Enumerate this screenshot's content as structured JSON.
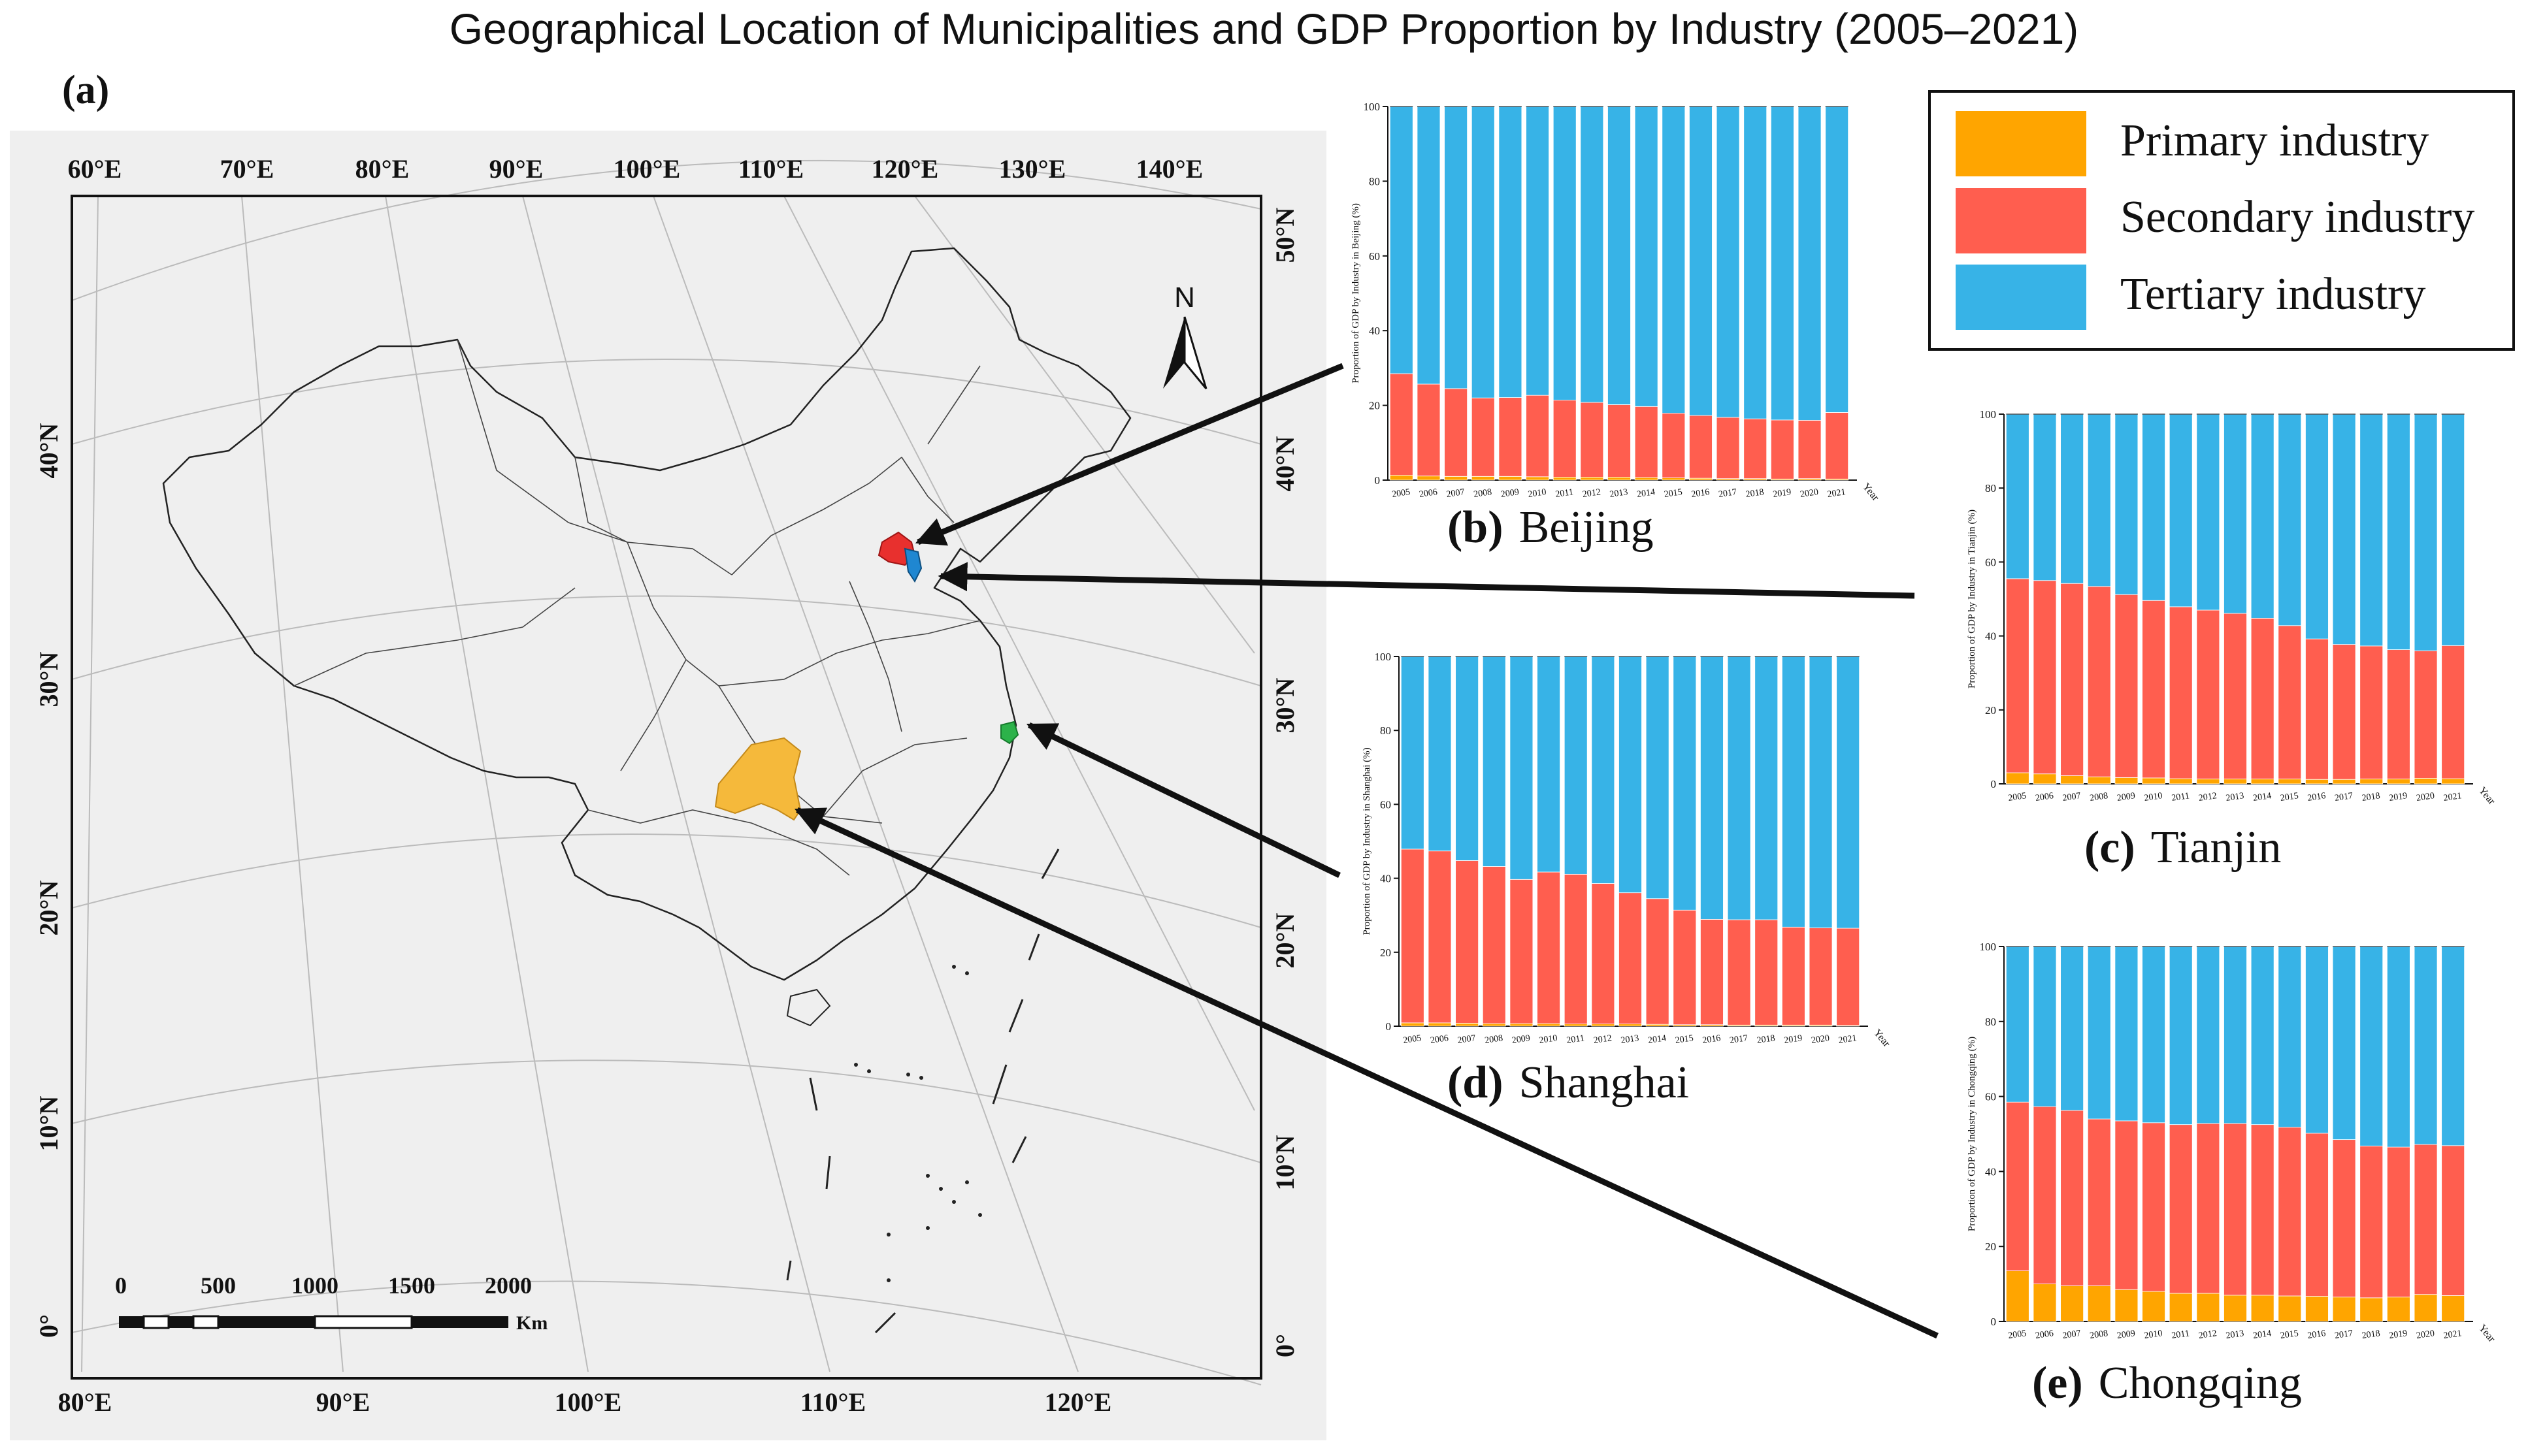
{
  "title": "Geographical Location of Municipalities and GDP Proportion by Industry (2005–2021)",
  "colors": {
    "primary": "#FFA500",
    "secondary": "#FF5E4F",
    "tertiary": "#37B3E7",
    "chongqing_map": "#F5B93B",
    "beijing_map": "#E8302E",
    "tianjin_map": "#1F87D1",
    "shanghai_map": "#2CB24A",
    "map_bg": "#EFEFEF"
  },
  "map": {
    "panel_label": "(a)",
    "top_lon_labels": [
      "60°E",
      "70°E",
      "80°E",
      "90°E",
      "100°E",
      "110°E",
      "120°E",
      "130°E",
      "140°E"
    ],
    "bottom_lon_labels": [
      "80°E",
      "90°E",
      "100°E",
      "110°E",
      "120°E"
    ],
    "left_lat_labels": [
      "40°N",
      "30°N",
      "20°N",
      "10°N",
      "0°"
    ],
    "right_lat_labels": [
      "50°N",
      "40°N",
      "30°N",
      "20°N",
      "10°N",
      "0°"
    ],
    "north_label": "N",
    "scale_ticks": [
      "0",
      "500",
      "1000",
      "1500",
      "2000"
    ],
    "scale_unit": "Km"
  },
  "legend": {
    "items": [
      "Primary industry",
      "Secondary industry",
      "Tertiary industry"
    ]
  },
  "chart_data": [
    {
      "id": "beijing",
      "type": "bar",
      "stacked": true,
      "label_letter": "(b)",
      "label_name": "Beijing",
      "ylabel": "Proportion of GDP by Industry in Beijing (%)",
      "xlabel": "Year",
      "categories": [
        "2005",
        "2006",
        "2007",
        "2008",
        "2009",
        "2010",
        "2011",
        "2012",
        "2013",
        "2014",
        "2015",
        "2016",
        "2017",
        "2018",
        "2019",
        "2020",
        "2021"
      ],
      "yticks": [
        "0",
        "20",
        "40",
        "60",
        "80",
        "100"
      ],
      "ylim": [
        0,
        100
      ],
      "series": [
        {
          "name": "Primary industry",
          "values": [
            1.3,
            1.1,
            1.0,
            1.0,
            1.0,
            0.9,
            0.8,
            0.8,
            0.8,
            0.7,
            0.6,
            0.5,
            0.4,
            0.4,
            0.3,
            0.4,
            0.3
          ]
        },
        {
          "name": "Secondary industry",
          "values": [
            27.2,
            24.6,
            23.5,
            21.0,
            21.1,
            21.8,
            20.6,
            20.0,
            19.4,
            19.0,
            17.3,
            16.8,
            16.4,
            16.0,
            15.8,
            15.6,
            17.8
          ]
        },
        {
          "name": "Tertiary industry",
          "values": [
            71.5,
            74.3,
            75.5,
            78.0,
            77.9,
            77.3,
            78.6,
            79.2,
            79.8,
            80.3,
            82.1,
            82.7,
            83.2,
            83.6,
            83.9,
            84.0,
            81.9
          ]
        }
      ]
    },
    {
      "id": "tianjin",
      "type": "bar",
      "stacked": true,
      "label_letter": "(c)",
      "label_name": "Tianjin",
      "ylabel": "Proportion of GDP by Industry in Tianjin (%)",
      "xlabel": "Year",
      "categories": [
        "2005",
        "2006",
        "2007",
        "2008",
        "2009",
        "2010",
        "2011",
        "2012",
        "2013",
        "2014",
        "2015",
        "2016",
        "2017",
        "2018",
        "2019",
        "2020",
        "2021"
      ],
      "yticks": [
        "0",
        "20",
        "40",
        "60",
        "80",
        "100"
      ],
      "ylim": [
        0,
        100
      ],
      "series": [
        {
          "name": "Primary industry",
          "values": [
            3.0,
            2.7,
            2.2,
            1.9,
            1.7,
            1.6,
            1.4,
            1.3,
            1.3,
            1.3,
            1.3,
            1.2,
            1.2,
            1.3,
            1.3,
            1.5,
            1.4
          ]
        },
        {
          "name": "Secondary industry",
          "values": [
            52.5,
            52.3,
            52.0,
            51.5,
            49.5,
            48.0,
            46.5,
            45.7,
            44.8,
            43.5,
            41.5,
            38.0,
            36.5,
            36.0,
            35.0,
            34.5,
            36.0
          ]
        },
        {
          "name": "Tertiary industry",
          "values": [
            44.5,
            45.0,
            45.8,
            46.6,
            48.8,
            50.4,
            52.1,
            53.0,
            53.9,
            55.2,
            57.2,
            60.8,
            62.3,
            62.7,
            63.7,
            64.0,
            62.6
          ]
        }
      ]
    },
    {
      "id": "shanghai",
      "type": "bar",
      "stacked": true,
      "label_letter": "(d)",
      "label_name": "Shanghai",
      "ylabel": "Proportion of GDP by Industry in Shanghai (%)",
      "xlabel": "Year",
      "categories": [
        "2005",
        "2006",
        "2007",
        "2008",
        "2009",
        "2010",
        "2011",
        "2012",
        "2013",
        "2014",
        "2015",
        "2016",
        "2017",
        "2018",
        "2019",
        "2020",
        "2021"
      ],
      "yticks": [
        "0",
        "20",
        "40",
        "60",
        "80",
        "100"
      ],
      "ylim": [
        0,
        100
      ],
      "series": [
        {
          "name": "Primary industry",
          "values": [
            0.9,
            0.9,
            0.8,
            0.7,
            0.7,
            0.7,
            0.6,
            0.6,
            0.6,
            0.5,
            0.4,
            0.4,
            0.3,
            0.3,
            0.3,
            0.3,
            0.2
          ]
        },
        {
          "name": "Secondary industry",
          "values": [
            47.0,
            46.5,
            44.0,
            42.5,
            39.0,
            41.0,
            40.5,
            38.0,
            35.5,
            34.0,
            31.0,
            28.5,
            28.5,
            28.5,
            26.5,
            26.3,
            26.3
          ]
        },
        {
          "name": "Tertiary industry",
          "values": [
            52.1,
            52.6,
            55.2,
            56.8,
            60.3,
            58.3,
            58.9,
            61.4,
            63.9,
            65.5,
            68.6,
            71.1,
            71.2,
            71.2,
            73.2,
            73.4,
            73.5
          ]
        }
      ]
    },
    {
      "id": "chongqing",
      "type": "bar",
      "stacked": true,
      "label_letter": "(e)",
      "label_name": "Chongqing",
      "ylabel": "Proportion of GDP by Industry in Chongqing (%)",
      "xlabel": "Year",
      "categories": [
        "2005",
        "2006",
        "2007",
        "2008",
        "2009",
        "2010",
        "2011",
        "2012",
        "2013",
        "2014",
        "2015",
        "2016",
        "2017",
        "2018",
        "2019",
        "2020",
        "2021"
      ],
      "yticks": [
        "0",
        "20",
        "40",
        "60",
        "80",
        "100"
      ],
      "ylim": [
        0,
        100
      ],
      "series": [
        {
          "name": "Primary industry",
          "values": [
            13.5,
            10.0,
            9.5,
            9.5,
            8.5,
            8.0,
            7.5,
            7.5,
            7.0,
            7.0,
            6.8,
            6.7,
            6.5,
            6.3,
            6.5,
            7.2,
            6.9
          ]
        },
        {
          "name": "Secondary industry",
          "values": [
            45.0,
            47.3,
            46.8,
            44.5,
            45.0,
            45.0,
            45.0,
            45.3,
            45.8,
            45.5,
            45.0,
            43.5,
            42.0,
            40.5,
            40.0,
            40.0,
            40.0
          ]
        },
        {
          "name": "Tertiary industry",
          "values": [
            41.5,
            42.7,
            43.7,
            46.0,
            46.5,
            47.0,
            47.5,
            47.2,
            47.2,
            47.5,
            48.2,
            49.8,
            51.5,
            53.2,
            53.5,
            52.8,
            53.1
          ]
        }
      ]
    }
  ]
}
